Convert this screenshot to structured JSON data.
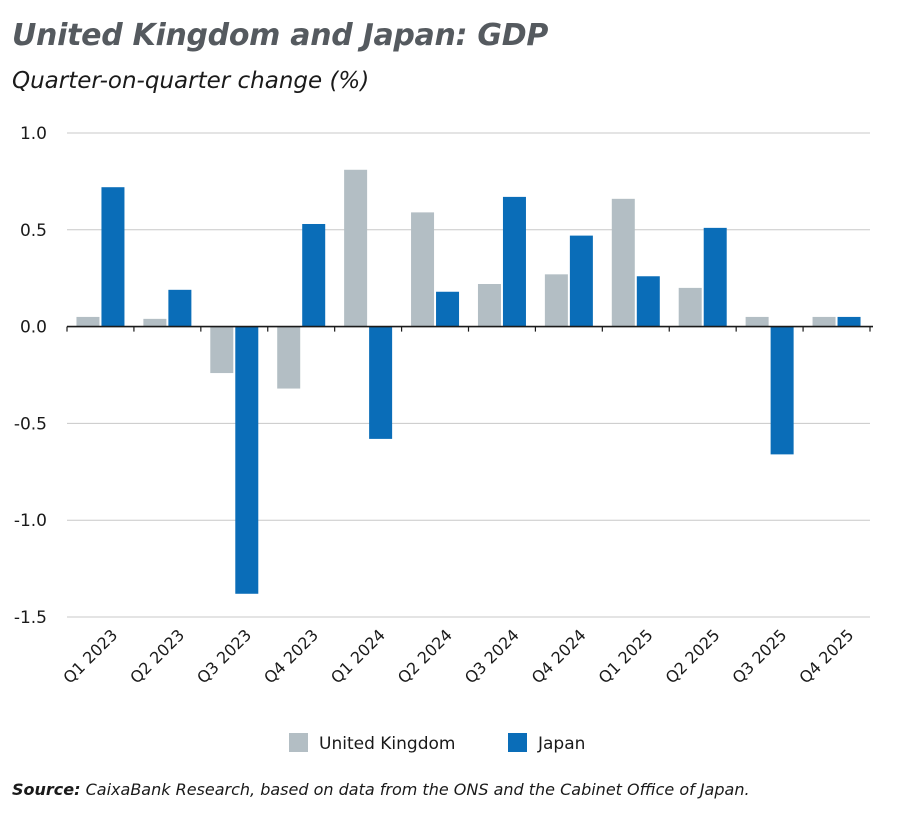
{
  "header": {
    "title": "United Kingdom and Japan: GDP",
    "subtitle": "Quarter-on-quarter change (%)"
  },
  "footer": {
    "source_label": "Source:",
    "source_text": " CaixaBank Research, based on data from the ONS and the Cabinet Office of Japan."
  },
  "colors": {
    "uk": "#b3bec4",
    "japan": "#0a6db8",
    "grid": "#c8c8c8",
    "axis": "#1a1a1a"
  },
  "chart_data": {
    "type": "bar",
    "title": "United Kingdom and Japan: GDP",
    "subtitle": "Quarter-on-quarter change (%)",
    "categories": [
      "Q1 2023",
      "Q2 2023",
      "Q3 2023",
      "Q4 2023",
      "Q1 2024",
      "Q2 2024",
      "Q3 2024",
      "Q4 2024",
      "Q1 2025",
      "Q2 2025",
      "Q3 2025",
      "Q4 2025"
    ],
    "series": [
      {
        "name": "United Kingdom",
        "values": [
          0.05,
          0.04,
          -0.24,
          -0.32,
          0.81,
          0.59,
          0.22,
          0.27,
          0.66,
          0.2,
          0.05,
          0.05
        ]
      },
      {
        "name": "Japan",
        "values": [
          0.72,
          0.19,
          -1.38,
          0.53,
          -0.58,
          0.18,
          0.67,
          0.47,
          0.26,
          0.51,
          -0.66,
          0.05
        ]
      }
    ],
    "yticks": [
      "1.0",
      "0.5",
      "0.0",
      "-0.5",
      "-1.0",
      "-1.5"
    ],
    "ylim": [
      -1.5,
      1.0
    ],
    "xlabel": "",
    "ylabel": "",
    "grid": true,
    "legend": "bottom-center"
  }
}
